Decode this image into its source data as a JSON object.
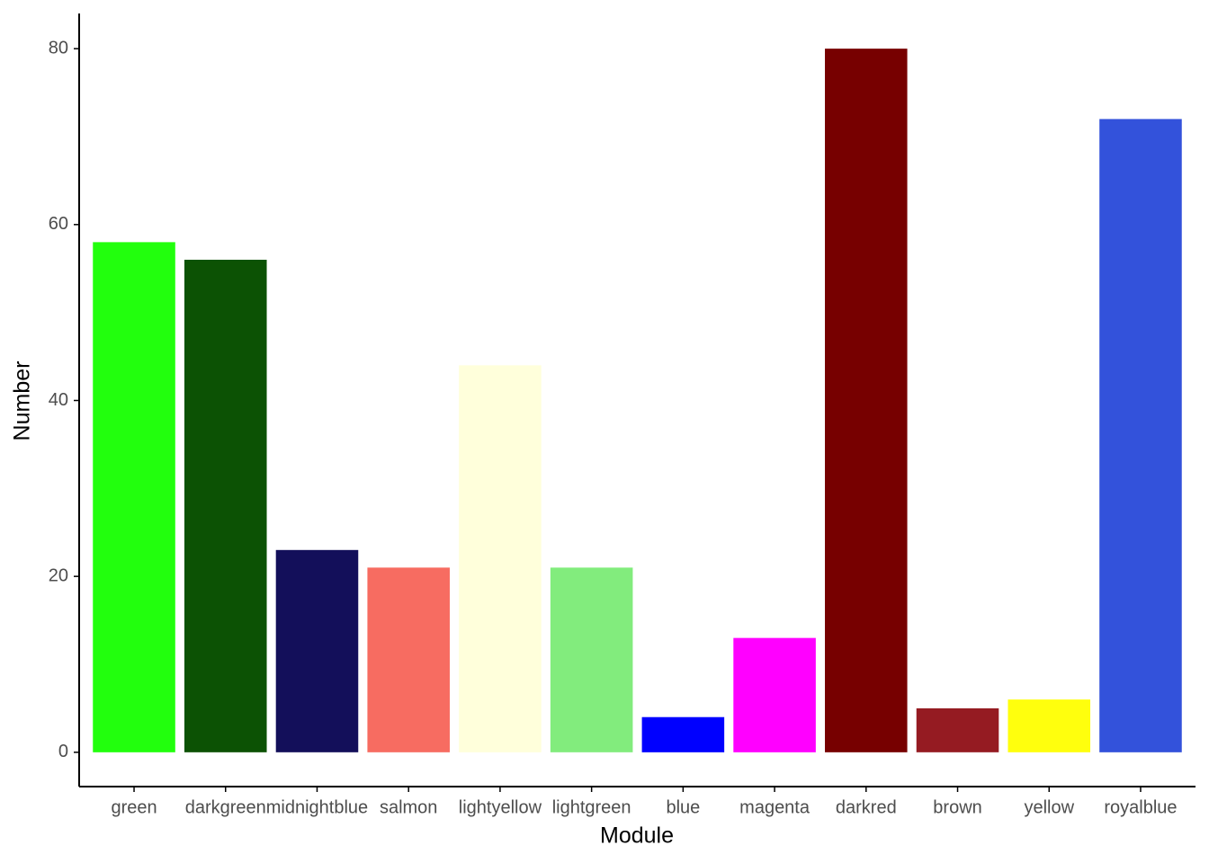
{
  "chart_data": {
    "type": "bar",
    "x_label": "Module",
    "y_label": "Number",
    "categories": [
      "green",
      "darkgreen",
      "midnightblue",
      "salmon",
      "lightyellow",
      "lightgreen",
      "blue",
      "magenta",
      "darkred",
      "brown",
      "yellow",
      "royalblue"
    ],
    "values": [
      58,
      56,
      23,
      21,
      44,
      21,
      4,
      13,
      80,
      5,
      6,
      72
    ],
    "colors": [
      "#22ff0d",
      "#0c5204",
      "#130f5a",
      "#f76c61",
      "#ffffdb",
      "#82ec7d",
      "#0000ff",
      "#ff00ff",
      "#770000",
      "#951b22",
      "#ffff0d",
      "#3352db"
    ],
    "ylim": [
      -3.9,
      84
    ],
    "yticks": [
      0,
      20,
      40,
      60,
      80
    ],
    "grid": false
  }
}
